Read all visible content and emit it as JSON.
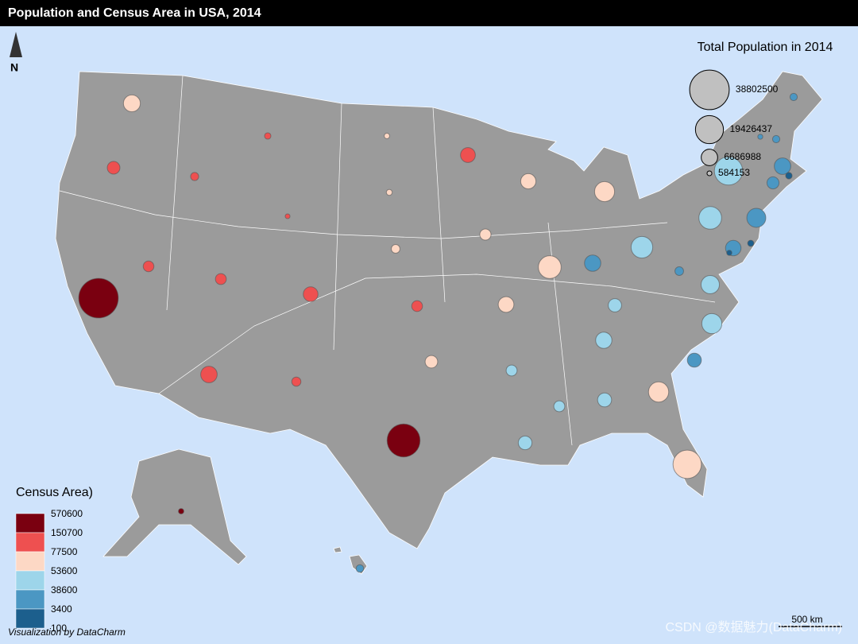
{
  "header": {
    "title": "Population and Census Area in USA, 2014"
  },
  "north": "N",
  "population_legend": {
    "title": "Total Population in 2014",
    "values": [
      38802500,
      19426437,
      6686988,
      584153
    ]
  },
  "area_legend": {
    "title": "Census Area)",
    "breaks": [
      570600,
      150700,
      77500,
      53600,
      38600,
      3400,
      100
    ],
    "colors": [
      "#7a0010",
      "#ee5050",
      "#fdd8c5",
      "#9dd5ea",
      "#4b97c3",
      "#1c5f8d"
    ]
  },
  "bubbles": [
    {
      "population": 38802500,
      "color": "#7a0010"
    },
    {
      "population": 26956958,
      "color": "#7a0010"
    },
    {
      "population": 19893297,
      "color": "#fdd8c5"
    },
    {
      "population": 19746227,
      "color": "#9dd5ea"
    },
    {
      "population": 12787209,
      "color": "#9dd5ea"
    },
    {
      "population": 12880580,
      "color": "#fdd8c5"
    },
    {
      "population": 11594163,
      "color": "#9dd5ea"
    },
    {
      "population": 10097343,
      "color": "#fdd8c5"
    },
    {
      "population": 9943964,
      "color": "#9dd5ea"
    },
    {
      "population": 9909877,
      "color": "#fdd8c5"
    },
    {
      "population": 8938175,
      "color": "#4b97c3"
    },
    {
      "population": 8326289,
      "color": "#9dd5ea"
    },
    {
      "population": 7061530,
      "color": "#fdd8c5"
    },
    {
      "population": 6745408,
      "color": "#4b97c3"
    },
    {
      "population": 6731484,
      "color": "#ee5050"
    },
    {
      "population": 6596855,
      "color": "#4b97c3"
    },
    {
      "population": 6549352,
      "color": "#9dd5ea"
    },
    {
      "population": 6063589,
      "color": "#fdd8c5"
    },
    {
      "population": 5976407,
      "color": "#4b97c3"
    },
    {
      "population": 5757564,
      "color": "#fdd8c5"
    },
    {
      "population": 5457173,
      "color": "#ee5050"
    },
    {
      "population": 5355866,
      "color": "#ee5050"
    },
    {
      "population": 4849377,
      "color": "#9dd5ea"
    },
    {
      "population": 4832482,
      "color": "#4b97c3"
    },
    {
      "population": 4649676,
      "color": "#9dd5ea"
    },
    {
      "population": 4413457,
      "color": "#9dd5ea"
    },
    {
      "population": 3970239,
      "color": "#ee5050"
    },
    {
      "population": 3878051,
      "color": "#fdd8c5"
    },
    {
      "population": 3596677,
      "color": "#4b97c3"
    },
    {
      "population": 3107126,
      "color": "#fdd8c5"
    },
    {
      "population": 2994079,
      "color": "#9dd5ea"
    },
    {
      "population": 2966369,
      "color": "#9dd5ea"
    },
    {
      "population": 2942902,
      "color": "#ee5050"
    },
    {
      "population": 2904021,
      "color": "#ee5050"
    },
    {
      "population": 2839099,
      "color": "#ee5050"
    },
    {
      "population": 2085572,
      "color": "#ee5050"
    },
    {
      "population": 1881503,
      "color": "#fdd8c5"
    },
    {
      "population": 1850326,
      "color": "#4b97c3"
    },
    {
      "population": 1634464,
      "color": "#ee5050"
    },
    {
      "population": 1419561,
      "color": "#4b97c3"
    },
    {
      "population": 1326813,
      "color": "#4b97c3"
    },
    {
      "population": 1330089,
      "color": "#4b97c3"
    },
    {
      "population": 1055173,
      "color": "#1c5f8d"
    },
    {
      "population": 1023579,
      "color": "#ee5050"
    },
    {
      "population": 935614,
      "color": "#1c5f8d"
    },
    {
      "population": 853175,
      "color": "#fdd8c5"
    },
    {
      "population": 736732,
      "color": "#7a0010"
    },
    {
      "population": 739482,
      "color": "#fdd8c5"
    },
    {
      "population": 626562,
      "color": "#4b97c3"
    },
    {
      "population": 658893,
      "color": "#1c5f8d"
    },
    {
      "population": 584153,
      "color": "#ee5050"
    }
  ],
  "scale_bar": "500 km",
  "credit": "Visualization by DataCharm",
  "watermark": "CSDN @数据魅力(DataCharm)"
}
